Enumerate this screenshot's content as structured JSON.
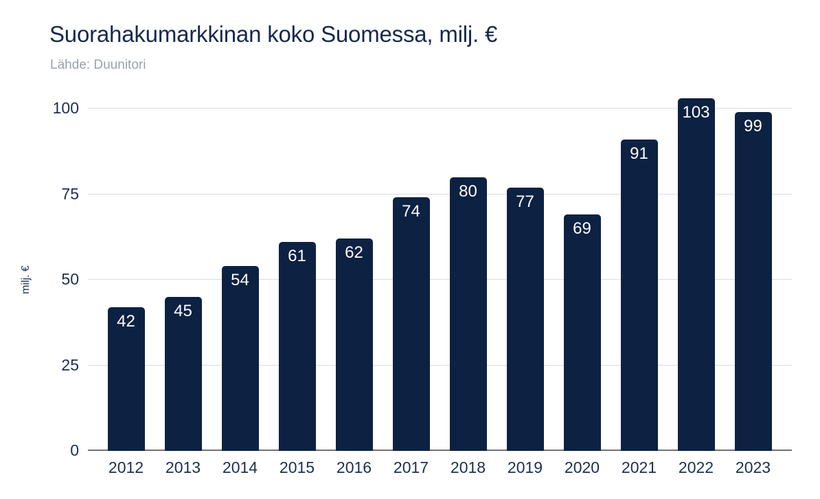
{
  "chart_data": {
    "type": "bar",
    "title": "Suorahakumarkkinan koko Suomessa, milj. €",
    "source": "Lähde: Duunitori",
    "ylabel": "milj. €",
    "categories": [
      "2012",
      "2013",
      "2014",
      "2015",
      "2016",
      "2017",
      "2018",
      "2019",
      "2020",
      "2021",
      "2022",
      "2023"
    ],
    "values": [
      42,
      45,
      54,
      61,
      62,
      74,
      80,
      77,
      69,
      91,
      103,
      99
    ],
    "yticks": [
      0,
      25,
      50,
      75,
      100
    ],
    "ylim": [
      0,
      100
    ],
    "grid": true,
    "legend_position": "none",
    "colors": {
      "bar": "#0d2142",
      "title": "#16294d",
      "source": "#9ba1a9",
      "tick": "#1c2e52",
      "gridline": "#dadce0",
      "axis_line": "#717171",
      "value_label": "#ffffff",
      "background": "#ffffff"
    }
  }
}
